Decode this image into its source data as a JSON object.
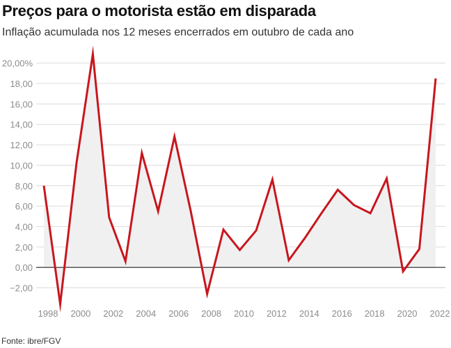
{
  "title": "Preços para o motorista estão em disparada",
  "subtitle": "Inflação acumulada nos 12 meses encerrados em outubro de cada ano",
  "source": "Fonte: ibre/FGV",
  "colors": {
    "line": "#c8161d",
    "area": "#f0f0f0",
    "grid": "#dcdcdc",
    "zero_line": "#222222"
  },
  "chart_data": {
    "type": "area",
    "x": [
      1998,
      1999,
      2000,
      2001,
      2002,
      2003,
      2004,
      2005,
      2006,
      2007,
      2008,
      2009,
      2010,
      2011,
      2012,
      2013,
      2014,
      2015,
      2016,
      2017,
      2018,
      2019,
      2020,
      2021,
      2022
    ],
    "series": [
      {
        "values": [
          8.0,
          -3.6,
          10.2,
          20.9,
          4.9,
          0.6,
          11.2,
          5.5,
          12.8,
          5.5,
          -2.6,
          3.7,
          1.7,
          3.6,
          8.6,
          0.7,
          2.9,
          5.3,
          7.6,
          6.1,
          5.3,
          8.7,
          -0.4,
          1.8,
          18.5
        ]
      }
    ],
    "ylim": [
      -3.6,
      21.0
    ],
    "yticks": [
      -2,
      0,
      2,
      4,
      6,
      8,
      10,
      12,
      14,
      16,
      18,
      20
    ],
    "ytick_labels": [
      "−2,00",
      "0,00",
      "2,00",
      "4,00",
      "6,00",
      "8,00",
      "10,00",
      "12,00",
      "14,00",
      "16,00",
      "18,00",
      "20,00%"
    ],
    "xticks": [
      1998,
      2000,
      2002,
      2004,
      2006,
      2008,
      2010,
      2012,
      2014,
      2016,
      2018,
      2020,
      2022
    ],
    "xtick_labels": [
      "1998",
      "2000",
      "2002",
      "2004",
      "2006",
      "2008",
      "2010",
      "2012",
      "2014",
      "2016",
      "2018",
      "2020",
      "2022"
    ],
    "grid": true,
    "xlabel": "",
    "ylabel": ""
  }
}
